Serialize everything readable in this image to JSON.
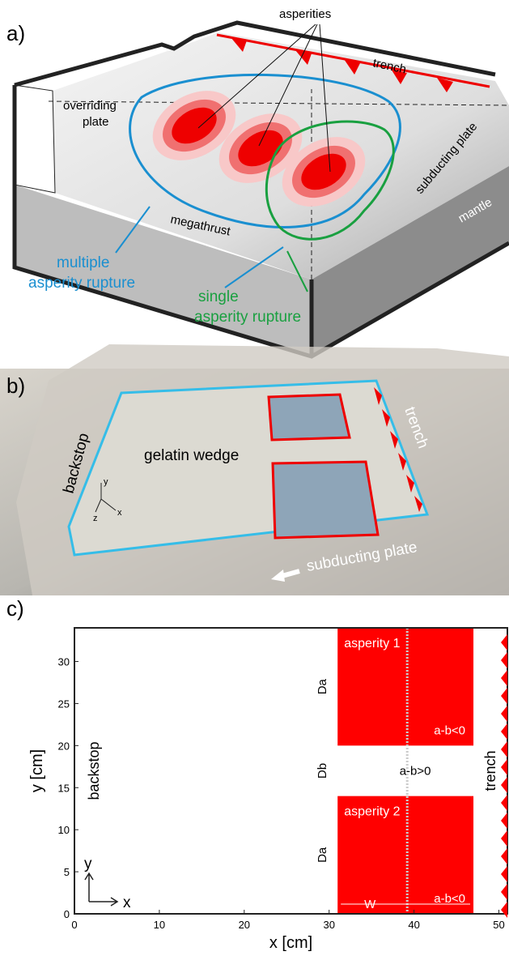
{
  "panel_a": {
    "label": "a)",
    "asperities": "asperities",
    "trench": "trench",
    "overriding_plate": [
      "overriding",
      "plate"
    ],
    "subducting_plate": "subducting plate",
    "mantle": "mantle",
    "megathrust": "megathrust",
    "multiple_rupture": [
      "multiple",
      "asperity rupture"
    ],
    "single_rupture": [
      "single",
      "asperity rupture"
    ]
  },
  "panel_b": {
    "label": "b)",
    "backstop": "backstop",
    "gelatin_wedge": "gelatin wedge",
    "trench": "trench",
    "subducting_plate": "subducting plate",
    "axes": [
      "x",
      "y",
      "z"
    ]
  },
  "panel_c": {
    "label": "c)",
    "xlabel": "x [cm]",
    "ylabel": "y [cm]",
    "xlim": [
      0,
      51
    ],
    "ylim": [
      0,
      34
    ],
    "xticks": [
      0,
      10,
      20,
      30,
      40,
      50
    ],
    "yticks": [
      0,
      5,
      10,
      15,
      20,
      25,
      30
    ],
    "regions": [
      {
        "name": "asperity 1",
        "note": "a-b<0",
        "x": [
          31,
          47
        ],
        "y": [
          20,
          34
        ]
      },
      {
        "name": "asperity 2",
        "note": "a-b<0",
        "x": [
          31,
          47
        ],
        "y": [
          0,
          14
        ]
      }
    ],
    "dotted_x": 39.2,
    "gap_note": "a-b>0",
    "Da": "Da",
    "Db": "Db",
    "W": "W",
    "backstop": "backstop",
    "trench": "trench",
    "axes": [
      "x",
      "y"
    ]
  }
}
